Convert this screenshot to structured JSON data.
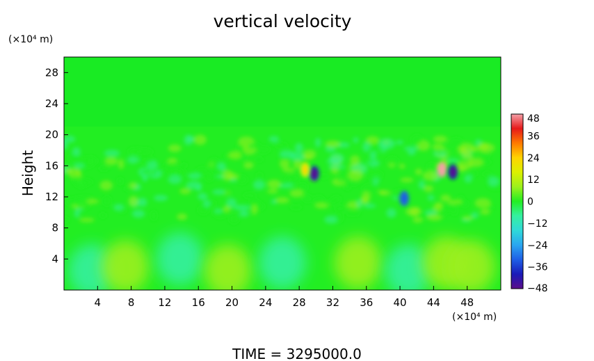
{
  "chart_data": {
    "type": "heatmap",
    "title": "vertical velocity",
    "ylabel": "Height",
    "y_unit": "(×10⁴ m)",
    "x_unit": "(×10⁴ m)",
    "xlim": [
      0,
      52
    ],
    "ylim": [
      0,
      30
    ],
    "x_ticks": [
      4,
      8,
      12,
      16,
      20,
      24,
      28,
      32,
      36,
      40,
      44,
      48
    ],
    "y_ticks": [
      4,
      8,
      12,
      16,
      20,
      24,
      28
    ],
    "colorbar": {
      "ticks": [
        48,
        36,
        24,
        12,
        0,
        -12,
        -24,
        -36,
        -48
      ],
      "range": [
        -48,
        48
      ],
      "stops": [
        {
          "v": -48,
          "color": "#5b0f8a"
        },
        {
          "v": -40,
          "color": "#1a1ab8"
        },
        {
          "v": -32,
          "color": "#1f5fe6"
        },
        {
          "v": -24,
          "color": "#2aa6f0"
        },
        {
          "v": -16,
          "color": "#2fd9d9"
        },
        {
          "v": -8,
          "color": "#35f0a0"
        },
        {
          "v": 0,
          "color": "#22ee22"
        },
        {
          "v": 8,
          "color": "#9cf01c"
        },
        {
          "v": 16,
          "color": "#dcf000"
        },
        {
          "v": 24,
          "color": "#ffd400"
        },
        {
          "v": 32,
          "color": "#ff7a00"
        },
        {
          "v": 40,
          "color": "#e61a1a"
        },
        {
          "v": 48,
          "color": "#f4a0a8"
        }
      ]
    },
    "features": [
      {
        "x": 3.3,
        "y": 2.5,
        "v": -11
      },
      {
        "x": 7.3,
        "y": 3.0,
        "v": 11
      },
      {
        "x": 13.8,
        "y": 4.0,
        "v": -7
      },
      {
        "x": 19.5,
        "y": 2.5,
        "v": 7
      },
      {
        "x": 26.0,
        "y": 3.5,
        "v": -4
      },
      {
        "x": 35.0,
        "y": 3.5,
        "v": 8
      },
      {
        "x": 41.0,
        "y": 2.5,
        "v": -11
      },
      {
        "x": 45.5,
        "y": 3.5,
        "v": 11
      },
      {
        "x": 48.5,
        "y": 3.0,
        "v": 9
      },
      {
        "x": 29.8,
        "y": 15.0,
        "v": -40
      },
      {
        "x": 28.7,
        "y": 15.5,
        "v": 20
      },
      {
        "x": 45.0,
        "y": 15.5,
        "v": 45
      },
      {
        "x": 46.3,
        "y": 15.2,
        "v": -40
      },
      {
        "x": 40.5,
        "y": 11.8,
        "v": -30
      }
    ]
  },
  "time_label": "TIME  =  3295000.0"
}
